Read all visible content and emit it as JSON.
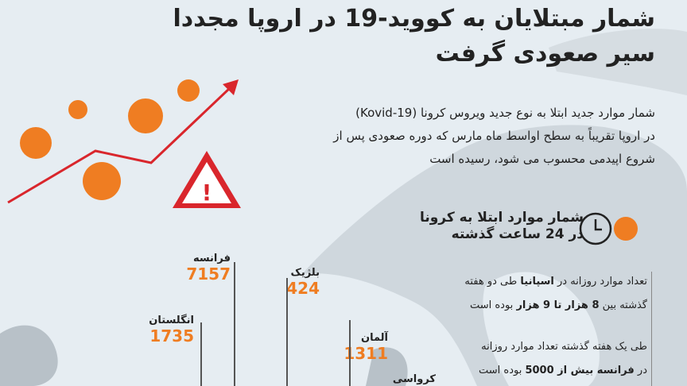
{
  "title": {
    "line1": "شمار مبتلایان به کووید-19 در اروپا مجددا",
    "line2": "سیر صعودی گرفت"
  },
  "intro": {
    "line1": "شمار موارد جدید ابتلا به نوع جدید ویروس کرونا (Kovid-19)",
    "line2": "در اروپا تقریباً به سطح اواسط ماه مارس که دوره صعودی پس از",
    "line3": "شروع اپیدمی محسوب می شود، رسیده است"
  },
  "section": {
    "line1": "شمار موارد ابتلا به کرونا",
    "line2": "در 24 ساعت گذشته",
    "icons": [
      "clock-icon",
      "virus-icon"
    ]
  },
  "notes": [
    {
      "t1": "تعداد موارد روزانه در ",
      "b1": "اسپانیا",
      "t2": " طی دو هفته",
      "t3": "گذشته بین ",
      "b2": "8 هزار تا 9 هزار",
      "t4": " بوده است"
    },
    {
      "t1": "طی یک هفته گذشته تعداد موارد روزانه",
      "t2": "در ",
      "b1": "فرانسه بیش از 5000",
      "t3": " بوده است"
    }
  ],
  "countries": [
    {
      "name": "فرانسه",
      "cases": "7157"
    },
    {
      "name": "بلژیک",
      "cases": "424"
    },
    {
      "name": "انگلستان",
      "cases": "1735"
    },
    {
      "name": "آلمان",
      "cases": "1311"
    },
    {
      "name": "کرواسی",
      "cases": ""
    }
  ],
  "colors": {
    "accent": "#ef7d22",
    "arrow": "#d9262c",
    "background": "#e6edf2",
    "land": "#c9d2d8"
  }
}
